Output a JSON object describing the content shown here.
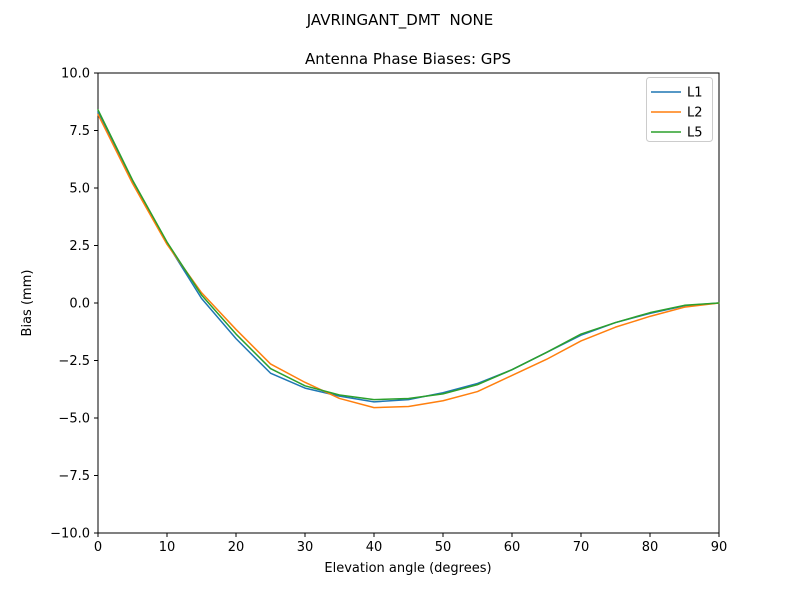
{
  "figure": {
    "suptitle": "JAVRINGANT_DMT  NONE",
    "background": "#ffffff"
  },
  "chart_data": {
    "type": "line",
    "suptitle": "JAVRINGANT_DMT  NONE",
    "title": "Antenna Phase Biases: GPS",
    "xlabel": "Elevation angle (degrees)",
    "ylabel": "Bias (mm)",
    "xlim": [
      0,
      90
    ],
    "ylim": [
      -10,
      10
    ],
    "xticks": [
      0,
      10,
      20,
      30,
      40,
      50,
      60,
      70,
      80,
      90
    ],
    "yticks": [
      10.0,
      7.5,
      5.0,
      2.5,
      0.0,
      -2.5,
      -5.0,
      -7.5,
      -10.0
    ],
    "grid": false,
    "legend_position": "upper right",
    "x": [
      0,
      5,
      10,
      15,
      20,
      25,
      30,
      35,
      40,
      45,
      50,
      55,
      60,
      65,
      70,
      75,
      80,
      85,
      90
    ],
    "series": [
      {
        "name": "L1",
        "color": "#1f77b4",
        "values": [
          8.3,
          5.3,
          2.6,
          0.2,
          -1.55,
          -3.05,
          -3.7,
          -4.05,
          -4.3,
          -4.2,
          -3.9,
          -3.5,
          -2.9,
          -2.15,
          -1.4,
          -0.85,
          -0.45,
          -0.12,
          0.0
        ]
      },
      {
        "name": "L2",
        "color": "#ff7f0e",
        "values": [
          8.2,
          5.2,
          2.55,
          0.45,
          -1.15,
          -2.65,
          -3.45,
          -4.15,
          -4.55,
          -4.5,
          -4.25,
          -3.85,
          -3.15,
          -2.45,
          -1.65,
          -1.05,
          -0.58,
          -0.18,
          0.0
        ]
      },
      {
        "name": "L5",
        "color": "#2ca02c",
        "values": [
          8.4,
          5.35,
          2.65,
          0.35,
          -1.35,
          -2.85,
          -3.6,
          -4.0,
          -4.2,
          -4.15,
          -3.95,
          -3.55,
          -2.9,
          -2.15,
          -1.35,
          -0.85,
          -0.42,
          -0.1,
          0.0
        ]
      }
    ]
  }
}
